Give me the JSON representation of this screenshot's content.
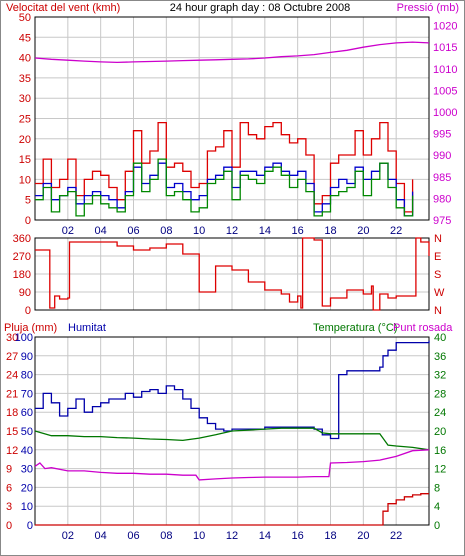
{
  "colors": {
    "wind": "#dd0000",
    "wind_avg": "#0000cc",
    "wind_gust2": "#008800",
    "pressure": "#cc00cc",
    "humidity": "#0000aa",
    "temperature": "#007700",
    "dewpoint": "#cc00cc",
    "rain": "#cc0000",
    "grid": "#c8c8c8",
    "axis_text_red": "#cc0000",
    "axis_text_magenta": "#cc00cc",
    "axis_text_green": "#007700",
    "axis_text_blue": "#0000aa"
  },
  "chart_data": [
    {
      "type": "line",
      "title": "24 hour graph day : 08 Octubre 2008",
      "left_axis_label": "Velocitat del vent (kmh)",
      "right_axis_label": "Pressió (mb)",
      "x_ticks": [
        "02",
        "04",
        "06",
        "08",
        "10",
        "12",
        "14",
        "16",
        "18",
        "20",
        "22"
      ],
      "x_range": [
        0,
        24
      ],
      "left_ticks": [
        "0",
        "5",
        "10",
        "15",
        "20",
        "25",
        "30",
        "35",
        "40",
        "45",
        "50"
      ],
      "left_range": [
        0,
        50
      ],
      "right_ticks": [
        "975",
        "980",
        "985",
        "990",
        "995",
        "1000",
        "1005",
        "1010",
        "1015",
        "1020"
      ],
      "right_range": [
        975,
        1022
      ],
      "grid": true,
      "series": [
        {
          "key": "pressure",
          "axis": "right",
          "x": [
            0.0,
            1.0,
            2.0,
            3.0,
            4.0,
            5.0,
            6.0,
            7.0,
            8.0,
            9.0,
            10.0,
            11.0,
            12.0,
            13.0,
            14.0,
            15.0,
            16.0,
            17.0,
            18.0,
            19.0,
            20.0,
            21.0,
            22.0,
            23.0,
            24.0
          ],
          "y": [
            1012.5,
            1012.2,
            1012.0,
            1011.8,
            1011.6,
            1011.5,
            1011.6,
            1011.7,
            1011.8,
            1011.9,
            1012.0,
            1012.1,
            1012.2,
            1012.3,
            1012.5,
            1012.8,
            1013.0,
            1013.3,
            1013.8,
            1014.3,
            1015.0,
            1015.6,
            1016.0,
            1016.2,
            1016.0
          ]
        },
        {
          "key": "wind",
          "axis": "left",
          "x": [
            0.0,
            0.5,
            1.0,
            1.5,
            2.0,
            2.5,
            3.0,
            3.5,
            4.0,
            4.5,
            5.0,
            5.5,
            6.0,
            6.5,
            7.0,
            7.5,
            8.0,
            8.5,
            9.0,
            9.5,
            10.0,
            10.5,
            11.0,
            11.5,
            12.0,
            12.5,
            13.0,
            13.5,
            14.0,
            14.5,
            15.0,
            15.5,
            16.0,
            16.5,
            17.0,
            17.5,
            18.0,
            18.5,
            19.0,
            19.5,
            20.0,
            20.5,
            21.0,
            21.5,
            22.0,
            22.5,
            23.0
          ],
          "y": [
            9,
            15,
            8,
            10,
            15,
            6,
            10,
            12,
            11,
            8,
            5,
            12,
            22,
            14,
            17,
            24,
            13,
            14,
            12,
            8,
            9,
            17,
            18,
            22,
            13,
            24,
            21,
            20,
            23,
            24,
            21,
            19,
            20,
            16,
            4,
            6,
            14,
            16,
            16,
            22,
            16,
            20,
            24,
            17,
            9,
            2,
            10
          ]
        },
        {
          "key": "wind_avg",
          "axis": "left",
          "x": [
            0.0,
            0.5,
            1.0,
            1.5,
            2.0,
            2.5,
            3.0,
            3.5,
            4.0,
            4.5,
            5.0,
            5.5,
            6.0,
            6.5,
            7.0,
            7.5,
            8.0,
            8.5,
            9.0,
            9.5,
            10.0,
            10.5,
            11.0,
            11.5,
            12.0,
            12.5,
            13.0,
            13.5,
            14.0,
            14.5,
            15.0,
            15.5,
            16.0,
            16.5,
            17.0,
            17.5,
            18.0,
            18.5,
            19.0,
            19.5,
            20.0,
            20.5,
            21.0,
            21.5,
            22.0,
            22.5,
            23.0
          ],
          "y": [
            6,
            9,
            5,
            6,
            8,
            4,
            6,
            7,
            6,
            5,
            3,
            7,
            13,
            9,
            11,
            14,
            8,
            9,
            7,
            5,
            6,
            10,
            11,
            13,
            8,
            12,
            12,
            11,
            13,
            14,
            12,
            11,
            12,
            9,
            2,
            4,
            8,
            10,
            9,
            13,
            10,
            12,
            14,
            10,
            5,
            1,
            7
          ]
        },
        {
          "key": "wind_gust2",
          "axis": "left",
          "x": [
            0.0,
            0.5,
            1.0,
            1.5,
            2.0,
            2.5,
            3.0,
            3.5,
            4.0,
            4.5,
            5.0,
            5.5,
            6.0,
            6.5,
            7.0,
            7.5,
            8.0,
            8.5,
            9.0,
            9.5,
            10.0,
            10.5,
            11.0,
            11.5,
            12.0,
            12.5,
            13.0,
            13.5,
            14.0,
            14.5,
            15.0,
            15.5,
            16.0,
            16.5,
            17.0,
            17.5,
            18.0,
            18.5,
            19.0,
            19.5,
            20.0,
            20.5,
            21.0,
            21.5,
            22.0,
            22.5,
            23.0
          ],
          "y": [
            5,
            8,
            2,
            6,
            7,
            1,
            4,
            6,
            4,
            3,
            2,
            6,
            14,
            7,
            10,
            15,
            6,
            7,
            5,
            2,
            3,
            9,
            10,
            12,
            5,
            11,
            10,
            9,
            12,
            13,
            11,
            8,
            10,
            7,
            1,
            2,
            6,
            7,
            8,
            12,
            6,
            10,
            14,
            8,
            3,
            1,
            6
          ]
        }
      ]
    },
    {
      "type": "line",
      "left_ticks": [
        "0",
        "90",
        "180",
        "270",
        "360"
      ],
      "left_range": [
        0,
        360
      ],
      "right_ticks": [
        "N",
        "W",
        "S",
        "E",
        "N"
      ],
      "grid": true,
      "series": [
        {
          "key": "wind",
          "axis": "left",
          "x": [
            0.0,
            0.8,
            0.9,
            1.2,
            1.5,
            2.0,
            2.1,
            2.3,
            3.0,
            4.0,
            5.0,
            6.0,
            7.0,
            8.0,
            9.0,
            9.8,
            10.0,
            11.0,
            12.0,
            13.0,
            14.0,
            15.0,
            15.5,
            16.0,
            16.2,
            16.3,
            17.0,
            17.5,
            18.0,
            19.0,
            20.0,
            20.5,
            20.6,
            21.0,
            21.5,
            22.0,
            23.0,
            23.2,
            23.5,
            24.0
          ],
          "y": [
            300,
            300,
            10,
            70,
            55,
            60,
            340,
            340,
            340,
            340,
            320,
            300,
            310,
            330,
            280,
            280,
            90,
            220,
            200,
            140,
            100,
            80,
            40,
            70,
            10,
            360,
            350,
            20,
            60,
            100,
            80,
            120,
            0,
            80,
            60,
            70,
            70,
            360,
            340,
            270
          ]
        }
      ]
    },
    {
      "type": "line",
      "left_axis_label": "Pluja (mm)",
      "left_axis_label2": "Humitat",
      "right_axis_label": "Temperatura (°C)",
      "right_axis_label2": "Punt rosada",
      "x_ticks": [
        "02",
        "04",
        "06",
        "08",
        "10",
        "12",
        "14",
        "16",
        "18",
        "20",
        "22"
      ],
      "x_range": [
        0,
        24
      ],
      "left_ticks": [
        "0",
        "3",
        "6",
        "9",
        "12",
        "15",
        "18",
        "21",
        "24",
        "27",
        "30"
      ],
      "left_range": [
        0,
        30
      ],
      "left_ticks_humidity": [
        "0",
        "10",
        "20",
        "30",
        "40",
        "50",
        "60",
        "70",
        "80",
        "90",
        "100"
      ],
      "humidity_range": [
        0,
        100
      ],
      "right_ticks": [
        "0",
        "4",
        "8",
        "12",
        "16",
        "20",
        "24",
        "28",
        "32",
        "36",
        "40"
      ],
      "right_range": [
        0,
        40
      ],
      "grid": true,
      "series": [
        {
          "key": "humidity",
          "axis": "humidity",
          "x": [
            0.0,
            0.5,
            1.0,
            1.5,
            2.0,
            2.5,
            3.0,
            3.5,
            4.0,
            4.5,
            5.0,
            5.5,
            6.0,
            6.5,
            7.0,
            7.5,
            8.0,
            8.5,
            9.0,
            9.5,
            10.0,
            10.5,
            11.0,
            11.5,
            12.0,
            13.0,
            14.0,
            15.0,
            16.0,
            17.0,
            17.5,
            18.0,
            18.5,
            19.0,
            20.0,
            20.5,
            21.0,
            21.2,
            21.5,
            22.0,
            23.0,
            24.0
          ],
          "y": [
            62,
            70,
            65,
            58,
            62,
            67,
            60,
            63,
            65,
            67,
            67,
            70,
            68,
            71,
            72,
            70,
            74,
            72,
            67,
            62,
            57,
            54,
            51,
            50,
            51,
            51,
            52,
            52,
            52,
            51,
            48,
            46,
            80,
            82,
            82,
            82,
            84,
            90,
            93,
            97,
            97,
            98
          ]
        },
        {
          "key": "temperature",
          "axis": "right",
          "x": [
            0.0,
            1.0,
            2.0,
            3.0,
            4.0,
            5.0,
            6.0,
            7.0,
            8.0,
            9.0,
            10.0,
            11.0,
            12.0,
            13.0,
            14.0,
            15.0,
            16.0,
            17.0,
            17.5,
            18.0,
            19.0,
            20.0,
            21.0,
            21.5,
            22.0,
            23.0,
            24.0
          ],
          "y": [
            20,
            19,
            19,
            18.8,
            18.8,
            18.6,
            18.5,
            18.3,
            18.2,
            18.0,
            18.5,
            19.2,
            20,
            20.2,
            20.4,
            20.6,
            20.6,
            20.6,
            19.6,
            19.4,
            19.4,
            19.4,
            19.4,
            17.0,
            16.8,
            16.5,
            16.0
          ]
        },
        {
          "key": "dewpoint",
          "axis": "right",
          "x": [
            0.0,
            0.3,
            0.6,
            1.0,
            2.0,
            3.0,
            4.0,
            5.0,
            6.0,
            7.0,
            8.0,
            9.0,
            9.8,
            10.0,
            11.0,
            12.0,
            13.0,
            14.0,
            15.0,
            16.0,
            17.0,
            17.9,
            18.0,
            19.0,
            20.0,
            21.0,
            22.0,
            23.0,
            24.0
          ],
          "y": [
            12.5,
            13.2,
            12.0,
            12.2,
            11.5,
            11.5,
            11.2,
            11.0,
            11.0,
            10.8,
            10.8,
            10.6,
            10.6,
            9.6,
            9.8,
            10.0,
            10.1,
            10.2,
            10.2,
            10.2,
            10.3,
            10.3,
            13.2,
            13.3,
            13.5,
            13.8,
            14.6,
            15.8,
            16.0
          ]
        },
        {
          "key": "rain",
          "axis": "left",
          "x": [
            0.0,
            20.0,
            21.1,
            21.2,
            21.5,
            22.0,
            22.5,
            23.0,
            23.5,
            24.0
          ],
          "y": [
            0.0,
            0.0,
            0.0,
            2.2,
            3.4,
            4.0,
            4.5,
            4.8,
            5.0,
            5.0
          ]
        }
      ]
    }
  ]
}
